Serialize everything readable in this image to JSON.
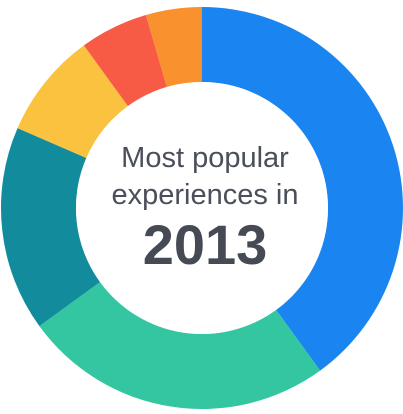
{
  "chart_data": {
    "type": "pie",
    "style": "donut",
    "title_lines": [
      "Most popular",
      "experiences in"
    ],
    "year": "2013",
    "colors": [
      "#1a85f0",
      "#34c6a0",
      "#128b9c",
      "#fbc240",
      "#f75a45",
      "#f9912e"
    ],
    "values": [
      40,
      25,
      16.5,
      8.5,
      5.5,
      4.5
    ]
  }
}
